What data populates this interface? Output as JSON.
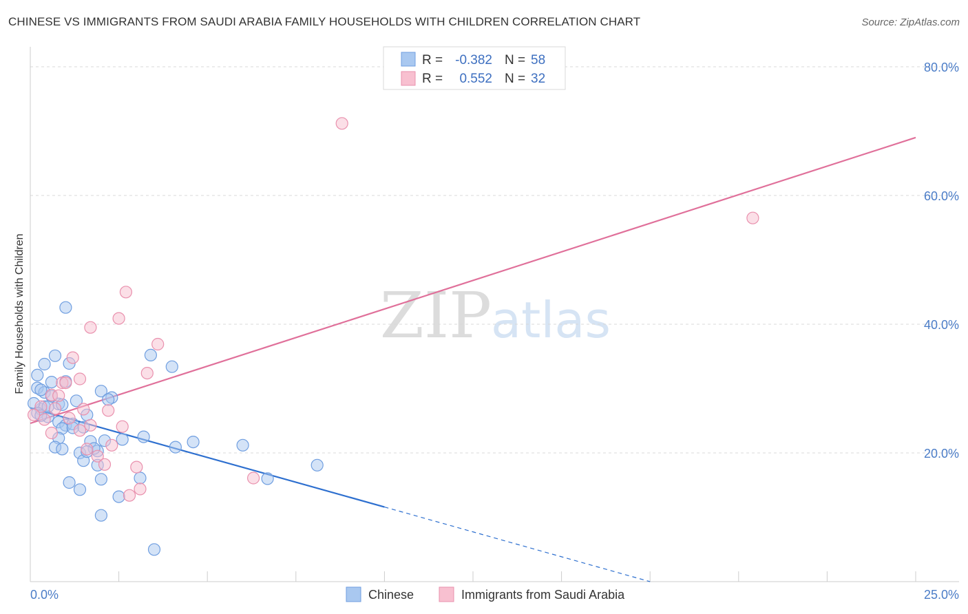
{
  "header": {
    "title": "CHINESE VS IMMIGRANTS FROM SAUDI ARABIA FAMILY HOUSEHOLDS WITH CHILDREN CORRELATION CHART",
    "source": "Source: ZipAtlas.com"
  },
  "watermark": {
    "zip": "ZIP",
    "atlas": "atlas"
  },
  "legend": {
    "r_label": "R =",
    "n_label": "N =",
    "rows": [
      {
        "r": "-0.382",
        "n": "58",
        "color": "#a9c8f0",
        "stroke": "#6f9ee0"
      },
      {
        "r": "0.552",
        "n": "32",
        "color": "#f8c0d0",
        "stroke": "#e990ad"
      }
    ]
  },
  "chart_data": {
    "type": "scatter",
    "title": "CHINESE VS IMMIGRANTS FROM SAUDI ARABIA FAMILY HOUSEHOLDS WITH CHILDREN CORRELATION CHART",
    "xlabel": "",
    "ylabel": "Family Households with Children",
    "xlim": [
      0,
      25
    ],
    "ylim": [
      0,
      80
    ],
    "x_tick_labels": [
      "0.0%",
      "25.0%"
    ],
    "y_tick_labels": [
      "20.0%",
      "40.0%",
      "60.0%",
      "80.0%"
    ],
    "y_ticks": [
      20,
      40,
      60,
      80
    ],
    "grid": true,
    "legend_position": "top-center",
    "series": [
      {
        "name": "Chinese",
        "color": "#a9c8f0",
        "stroke": "#6f9ee0",
        "line_color": "#2d6fcf",
        "trend": {
          "x0": 0.0,
          "y0": 27.0,
          "x1": 10.0,
          "y1": 11.6,
          "dash_x1": 17.5,
          "dash_y1": 0.0
        },
        "points": [
          [
            0.2,
            30.1
          ],
          [
            0.4,
            29.4
          ],
          [
            0.3,
            26.8
          ],
          [
            0.6,
            28.8
          ],
          [
            0.8,
            27.6
          ],
          [
            0.5,
            25.6
          ],
          [
            0.4,
            33.8
          ],
          [
            0.2,
            32.1
          ],
          [
            0.6,
            31.0
          ],
          [
            1.0,
            31.1
          ],
          [
            0.7,
            35.1
          ],
          [
            1.1,
            33.9
          ],
          [
            1.0,
            42.6
          ],
          [
            0.3,
            29.8
          ],
          [
            0.4,
            27.2
          ],
          [
            0.8,
            24.8
          ],
          [
            1.0,
            24.3
          ],
          [
            1.5,
            24.0
          ],
          [
            1.3,
            28.1
          ],
          [
            1.6,
            25.9
          ],
          [
            1.2,
            24.5
          ],
          [
            1.7,
            21.8
          ],
          [
            0.9,
            23.8
          ],
          [
            0.8,
            22.3
          ],
          [
            0.7,
            20.9
          ],
          [
            0.9,
            20.6
          ],
          [
            1.4,
            20.0
          ],
          [
            1.9,
            20.3
          ],
          [
            1.8,
            20.7
          ],
          [
            1.5,
            18.8
          ],
          [
            1.9,
            18.1
          ],
          [
            2.0,
            29.6
          ],
          [
            2.3,
            28.6
          ],
          [
            2.2,
            28.3
          ],
          [
            2.1,
            21.9
          ],
          [
            2.6,
            22.1
          ],
          [
            2.0,
            15.9
          ],
          [
            2.5,
            13.2
          ],
          [
            1.1,
            15.4
          ],
          [
            1.4,
            14.3
          ],
          [
            3.1,
            16.1
          ],
          [
            3.2,
            22.5
          ],
          [
            3.4,
            35.2
          ],
          [
            4.0,
            33.4
          ],
          [
            4.1,
            20.9
          ],
          [
            4.6,
            21.7
          ],
          [
            6.0,
            21.2
          ],
          [
            6.7,
            16.0
          ],
          [
            8.1,
            18.1
          ],
          [
            2.0,
            10.3
          ],
          [
            3.5,
            5.0
          ],
          [
            0.1,
            27.7
          ],
          [
            0.2,
            26.2
          ],
          [
            0.3,
            25.8
          ],
          [
            1.2,
            23.9
          ],
          [
            0.5,
            27.2
          ],
          [
            0.9,
            27.5
          ],
          [
            1.6,
            20.2
          ]
        ]
      },
      {
        "name": "Immigrants from Saudi Arabia",
        "color": "#f8c0d0",
        "stroke": "#e990ad",
        "line_color": "#e0709a",
        "trend": {
          "x0": 0.0,
          "y0": 24.6,
          "x1": 25.0,
          "y1": 69.0
        },
        "points": [
          [
            8.8,
            71.2
          ],
          [
            20.4,
            56.5
          ],
          [
            2.7,
            45.0
          ],
          [
            2.5,
            40.9
          ],
          [
            1.7,
            39.5
          ],
          [
            3.6,
            36.9
          ],
          [
            1.2,
            34.8
          ],
          [
            3.3,
            32.4
          ],
          [
            1.4,
            31.5
          ],
          [
            0.9,
            30.9
          ],
          [
            1.0,
            30.9
          ],
          [
            0.6,
            29.0
          ],
          [
            0.8,
            28.9
          ],
          [
            0.3,
            27.2
          ],
          [
            0.7,
            26.9
          ],
          [
            1.5,
            26.8
          ],
          [
            2.2,
            26.6
          ],
          [
            0.1,
            25.9
          ],
          [
            0.4,
            25.2
          ],
          [
            1.1,
            25.4
          ],
          [
            1.7,
            24.3
          ],
          [
            2.6,
            24.1
          ],
          [
            0.6,
            23.1
          ],
          [
            1.4,
            23.5
          ],
          [
            2.3,
            21.2
          ],
          [
            1.6,
            20.6
          ],
          [
            1.9,
            19.5
          ],
          [
            2.1,
            18.2
          ],
          [
            3.0,
            17.8
          ],
          [
            6.3,
            16.1
          ],
          [
            3.1,
            14.4
          ],
          [
            2.8,
            13.4
          ]
        ]
      }
    ]
  }
}
